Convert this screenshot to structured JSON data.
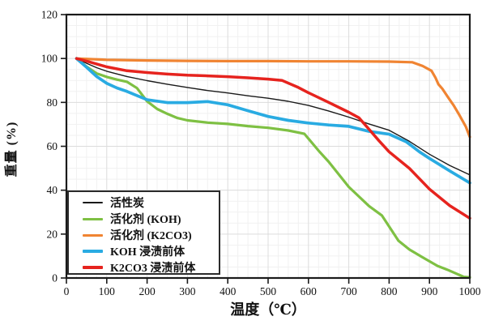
{
  "chart_data": {
    "type": "line",
    "title": "",
    "xlabel": "温度（℃）",
    "ylabel": "重量 (%)",
    "xlim": [
      0,
      1000
    ],
    "ylim": [
      0,
      120
    ],
    "xticks": [
      0,
      100,
      200,
      300,
      400,
      500,
      600,
      700,
      800,
      900,
      1000
    ],
    "yticks": [
      0,
      20,
      40,
      60,
      80,
      100,
      120
    ],
    "grid": true,
    "grid_major_color": "#dcdcdc",
    "grid_minor_color": "#f1f1f1",
    "axis_color": "#1a1a1a",
    "legend_position": "lower-left",
    "series": [
      {
        "name": "活性炭",
        "color": "#1a1a1a",
        "width": 1.4,
        "points": [
          [
            25,
            100
          ],
          [
            50,
            97.8
          ],
          [
            75,
            95.8
          ],
          [
            100,
            94.2
          ],
          [
            150,
            91.8
          ],
          [
            200,
            89.9
          ],
          [
            250,
            88.3
          ],
          [
            300,
            86.8
          ],
          [
            350,
            85.4
          ],
          [
            400,
            84.3
          ],
          [
            450,
            83
          ],
          [
            500,
            81.9
          ],
          [
            550,
            80.5
          ],
          [
            600,
            78.6
          ],
          [
            650,
            76.1
          ],
          [
            700,
            73.3
          ],
          [
            750,
            70.2
          ],
          [
            800,
            67.3
          ],
          [
            850,
            62.3
          ],
          [
            900,
            56.4
          ],
          [
            950,
            51.3
          ],
          [
            1000,
            47
          ]
        ]
      },
      {
        "name": "活化剂 (KOH)",
        "color": "#7ec043",
        "width": 3.2,
        "points": [
          [
            25,
            100
          ],
          [
            50,
            96.3
          ],
          [
            75,
            93.2
          ],
          [
            100,
            91.6
          ],
          [
            125,
            90.4
          ],
          [
            150,
            89.4
          ],
          [
            175,
            86.5
          ],
          [
            200,
            80.5
          ],
          [
            225,
            77
          ],
          [
            250,
            74.8
          ],
          [
            275,
            72.9
          ],
          [
            300,
            71.8
          ],
          [
            350,
            70.8
          ],
          [
            400,
            70.2
          ],
          [
            450,
            69.2
          ],
          [
            500,
            68.4
          ],
          [
            550,
            67.2
          ],
          [
            590,
            65.7
          ],
          [
            625,
            58
          ],
          [
            650,
            53
          ],
          [
            700,
            41.5
          ],
          [
            750,
            32.8
          ],
          [
            782,
            28.5
          ],
          [
            823,
            17
          ],
          [
            850,
            13
          ],
          [
            883,
            9.4
          ],
          [
            920,
            5.5
          ],
          [
            944,
            3.8
          ],
          [
            985,
            0.5
          ],
          [
            1000,
            0.3
          ]
        ]
      },
      {
        "name": "活化剂 (K2CO3)",
        "color": "#f08432",
        "width": 3.2,
        "points": [
          [
            25,
            100
          ],
          [
            100,
            99.4
          ],
          [
            200,
            99.1
          ],
          [
            300,
            98.9
          ],
          [
            400,
            98.8
          ],
          [
            500,
            98.8
          ],
          [
            600,
            98.7
          ],
          [
            700,
            98.7
          ],
          [
            800,
            98.6
          ],
          [
            857,
            98.3
          ],
          [
            883,
            96.6
          ],
          [
            905,
            94.4
          ],
          [
            915,
            91.2
          ],
          [
            922,
            88.3
          ],
          [
            932,
            86.2
          ],
          [
            945,
            82.6
          ],
          [
            960,
            78.6
          ],
          [
            975,
            74
          ],
          [
            990,
            69
          ],
          [
            1000,
            64.3
          ]
        ]
      },
      {
        "name": "KOH 浸渍前体",
        "color": "#29abe2",
        "width": 3.7,
        "points": [
          [
            25,
            100
          ],
          [
            50,
            96
          ],
          [
            75,
            91.8
          ],
          [
            100,
            88.7
          ],
          [
            125,
            86.6
          ],
          [
            150,
            85
          ],
          [
            175,
            83.1
          ],
          [
            200,
            81.2
          ],
          [
            250,
            79.9
          ],
          [
            300,
            79.9
          ],
          [
            350,
            80.4
          ],
          [
            400,
            78.9
          ],
          [
            450,
            76.2
          ],
          [
            500,
            73.6
          ],
          [
            550,
            71.8
          ],
          [
            600,
            70.6
          ],
          [
            650,
            69.7
          ],
          [
            700,
            69.1
          ],
          [
            750,
            66.8
          ],
          [
            800,
            65.5
          ],
          [
            843,
            62
          ],
          [
            875,
            57.5
          ],
          [
            900,
            54.5
          ],
          [
            950,
            48.8
          ],
          [
            1000,
            43.3
          ]
        ]
      },
      {
        "name": "K2CO3 浸渍前体",
        "color": "#e6231e",
        "width": 3.5,
        "points": [
          [
            25,
            100
          ],
          [
            50,
            98.8
          ],
          [
            100,
            96.2
          ],
          [
            150,
            94.4
          ],
          [
            200,
            93.6
          ],
          [
            250,
            92.9
          ],
          [
            300,
            92.4
          ],
          [
            350,
            92.1
          ],
          [
            400,
            91.7
          ],
          [
            450,
            91.2
          ],
          [
            500,
            90.6
          ],
          [
            535,
            90
          ],
          [
            575,
            86.8
          ],
          [
            600,
            84.4
          ],
          [
            650,
            80
          ],
          [
            700,
            75.5
          ],
          [
            725,
            73
          ],
          [
            750,
            67.8
          ],
          [
            775,
            62.5
          ],
          [
            800,
            57.5
          ],
          [
            850,
            50
          ],
          [
            900,
            40.5
          ],
          [
            950,
            33
          ],
          [
            1000,
            27.2
          ]
        ]
      }
    ]
  }
}
